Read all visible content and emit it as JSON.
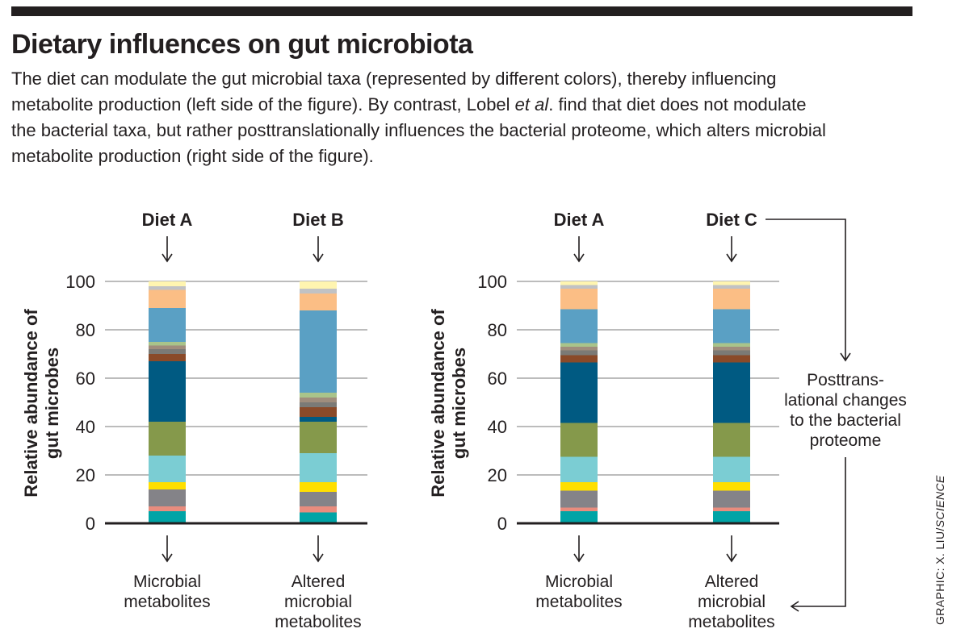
{
  "header": {
    "title": "Dietary influences on gut microbiota",
    "caption_part1": "The diet can modulate the gut microbial taxa (represented by different colors), thereby influencing metabolite production (left side of the figure). By contrast, Lobel ",
    "caption_italic": "et al",
    "caption_part2": ". find that diet does not modulate the bacterial taxa, but rather posttranslationally influences the bacterial proteome, which alters microbial metabolite production (right side of the figure)."
  },
  "credit": {
    "prefix": "GRAPHIC: X. LIU/",
    "italic": "SCIENCE"
  },
  "colors": {
    "teal": "#00a4a6",
    "salmon": "#e88c7e",
    "gray": "#848388",
    "yellow": "#ffdf00",
    "lightblue": "#7bcdd3",
    "olive": "#85994b",
    "navy": "#005a82",
    "rust": "#8a4a29",
    "taupe": "#7b7a76",
    "tan": "#a08d7c",
    "sage": "#a9c48a",
    "sky": "#5aa0c4",
    "peach": "#fbbe85",
    "silver": "#c1c2c4",
    "cream": "#fff5b0"
  },
  "annotation": {
    "lines": [
      "Posttrans-",
      "lational changes",
      "to the bacterial",
      "proteome"
    ]
  },
  "chart_data": [
    {
      "type": "stacked-bar",
      "ylabel_line1": "Relative abundance of",
      "ylabel_line2": "gut microbes",
      "ylim": [
        0,
        100
      ],
      "yticks": [
        "0",
        "20",
        "40",
        "60",
        "80",
        "100"
      ],
      "categories": [
        "Diet A",
        "Diet B"
      ],
      "outcomes": [
        [
          "Microbial",
          "metabolites"
        ],
        [
          "Altered",
          "microbial",
          "metabolites"
        ]
      ],
      "bars": [
        [
          {
            "color": "teal",
            "value": 5
          },
          {
            "color": "salmon",
            "value": 2
          },
          {
            "color": "gray",
            "value": 7
          },
          {
            "color": "yellow",
            "value": 3
          },
          {
            "color": "lightblue",
            "value": 11
          },
          {
            "color": "olive",
            "value": 14
          },
          {
            "color": "navy",
            "value": 25
          },
          {
            "color": "rust",
            "value": 3
          },
          {
            "color": "taupe",
            "value": 2
          },
          {
            "color": "tan",
            "value": 1.5
          },
          {
            "color": "sage",
            "value": 1.5
          },
          {
            "color": "sky",
            "value": 14
          },
          {
            "color": "peach",
            "value": 7.5
          },
          {
            "color": "silver",
            "value": 1.5
          },
          {
            "color": "cream",
            "value": 2
          }
        ],
        [
          {
            "color": "teal",
            "value": 4.5
          },
          {
            "color": "salmon",
            "value": 2.5
          },
          {
            "color": "gray",
            "value": 6
          },
          {
            "color": "yellow",
            "value": 4
          },
          {
            "color": "lightblue",
            "value": 12
          },
          {
            "color": "olive",
            "value": 13
          },
          {
            "color": "navy",
            "value": 2
          },
          {
            "color": "rust",
            "value": 4
          },
          {
            "color": "taupe",
            "value": 2
          },
          {
            "color": "tan",
            "value": 2
          },
          {
            "color": "sage",
            "value": 2
          },
          {
            "color": "sky",
            "value": 34
          },
          {
            "color": "peach",
            "value": 7
          },
          {
            "color": "silver",
            "value": 2
          },
          {
            "color": "cream",
            "value": 3
          }
        ]
      ]
    },
    {
      "type": "stacked-bar",
      "ylabel_line1": "Relative abundance of",
      "ylabel_line2": "gut microbes",
      "ylim": [
        0,
        100
      ],
      "yticks": [
        "0",
        "20",
        "40",
        "60",
        "80",
        "100"
      ],
      "categories": [
        "Diet A",
        "Diet C"
      ],
      "outcomes": [
        [
          "Microbial",
          "metabolites"
        ],
        [
          "Altered",
          "microbial",
          "metabolites"
        ]
      ],
      "bars": [
        [
          {
            "color": "teal",
            "value": 5
          },
          {
            "color": "salmon",
            "value": 1.5
          },
          {
            "color": "gray",
            "value": 7
          },
          {
            "color": "yellow",
            "value": 3.5
          },
          {
            "color": "lightblue",
            "value": 10.5
          },
          {
            "color": "olive",
            "value": 14
          },
          {
            "color": "navy",
            "value": 25
          },
          {
            "color": "rust",
            "value": 3
          },
          {
            "color": "taupe",
            "value": 2
          },
          {
            "color": "tan",
            "value": 1.5
          },
          {
            "color": "sage",
            "value": 1.5
          },
          {
            "color": "sky",
            "value": 14
          },
          {
            "color": "peach",
            "value": 8.5
          },
          {
            "color": "silver",
            "value": 1.5
          },
          {
            "color": "cream",
            "value": 1.5
          }
        ],
        [
          {
            "color": "teal",
            "value": 5
          },
          {
            "color": "salmon",
            "value": 1.5
          },
          {
            "color": "gray",
            "value": 7
          },
          {
            "color": "yellow",
            "value": 3.5
          },
          {
            "color": "lightblue",
            "value": 10.5
          },
          {
            "color": "olive",
            "value": 14
          },
          {
            "color": "navy",
            "value": 25
          },
          {
            "color": "rust",
            "value": 3
          },
          {
            "color": "taupe",
            "value": 2
          },
          {
            "color": "tan",
            "value": 1.5
          },
          {
            "color": "sage",
            "value": 1.5
          },
          {
            "color": "sky",
            "value": 14
          },
          {
            "color": "peach",
            "value": 8.5
          },
          {
            "color": "silver",
            "value": 1.5
          },
          {
            "color": "cream",
            "value": 1.5
          }
        ]
      ]
    }
  ]
}
